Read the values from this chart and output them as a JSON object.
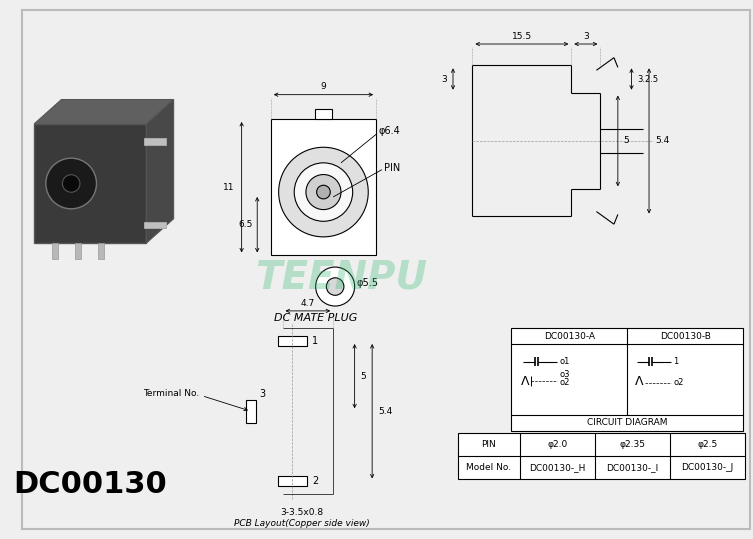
{
  "title": "DC00130",
  "bg_color": "#efefef",
  "watermark": "TEENPU",
  "watermark_color": "#30b870",
  "front_view_label_dc_mate": "DC MATE PLUG",
  "dim_width": "9",
  "dim_height": "11",
  "dim_65": "6.5",
  "dim_64": "φ6.4",
  "dim_55": "φ5.5",
  "pin_label": "PIN",
  "side_dim_155": "15.5",
  "side_dim_3a": "3",
  "side_dim_3b": "3",
  "side_dim_5": "5",
  "side_dim_325": "3.2.5",
  "side_dim_54": "5.4",
  "pcb_dim_47": "4.7",
  "pcb_dim_5": "5",
  "pcb_dim_54": "5.4",
  "pcb_terminal": "Terminal No.",
  "pcb_size": "3-3.5x0.8",
  "pcb_caption": "PCB Layout(Copper side view)",
  "circuit_hdr_a": "DC00130-A",
  "circuit_hdr_b": "DC00130-B",
  "circuit_label": "CIRCUIT DIAGRAM",
  "table_headers": [
    "Model No.",
    "DC00130-_H",
    "DC00130-_I",
    "DC00130-_J"
  ],
  "table_row": [
    "PIN",
    "φ2.0",
    "φ2.35",
    "φ2.5"
  ]
}
